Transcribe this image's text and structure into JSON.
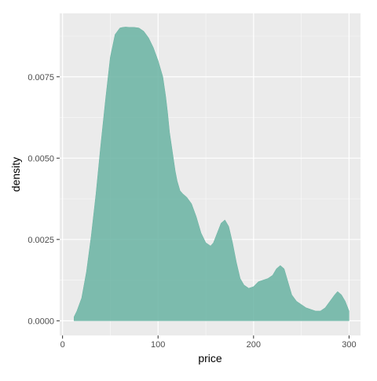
{
  "chart_data": {
    "type": "area",
    "title": "",
    "xlabel": "price",
    "ylabel": "density",
    "xlim": [
      -3,
      312
    ],
    "ylim": [
      -0.00045,
      0.00945
    ],
    "x_ticks": [
      {
        "value": 0,
        "label": "0"
      },
      {
        "value": 100,
        "label": "100"
      },
      {
        "value": 200,
        "label": "200"
      },
      {
        "value": 300,
        "label": "300"
      }
    ],
    "y_ticks": [
      {
        "value": 0.0,
        "label": "0.0000"
      },
      {
        "value": 0.0025,
        "label": "0.0025"
      },
      {
        "value": 0.005,
        "label": "0.0050"
      },
      {
        "value": 0.0075,
        "label": "0.0075"
      }
    ],
    "grid": true,
    "legend": "none",
    "colors": {
      "fill": "#69b3a2",
      "panel": "#ebebeb",
      "grid_major": "#ffffff",
      "axis_text": "#4d4d4d",
      "axis_title": "#000000"
    },
    "series": [
      {
        "x": [
          12,
          15,
          20,
          25,
          30,
          35,
          40,
          45,
          50,
          55,
          60,
          63,
          66,
          70,
          75,
          80,
          85,
          90,
          95,
          100,
          105,
          108,
          110,
          112,
          115,
          118,
          120,
          123,
          126,
          130,
          135,
          140,
          145,
          150,
          155,
          158,
          162,
          166,
          170,
          174,
          178,
          182,
          186,
          190,
          195,
          200,
          205,
          210,
          215,
          220,
          224,
          228,
          232,
          236,
          240,
          245,
          250,
          255,
          260,
          265,
          270,
          275,
          280,
          285,
          288,
          292,
          296,
          300
        ],
        "y": [
          0.00012,
          0.0003,
          0.0007,
          0.0015,
          0.0026,
          0.0039,
          0.0054,
          0.0068,
          0.0081,
          0.0088,
          0.009,
          0.00902,
          0.00903,
          0.00902,
          0.00902,
          0.009,
          0.0089,
          0.0087,
          0.0084,
          0.008,
          0.0075,
          0.0069,
          0.0064,
          0.0058,
          0.0052,
          0.0046,
          0.0043,
          0.004,
          0.0039,
          0.0038,
          0.0036,
          0.0032,
          0.0027,
          0.0024,
          0.0023,
          0.0024,
          0.0027,
          0.003,
          0.0031,
          0.0029,
          0.0024,
          0.0018,
          0.0013,
          0.0011,
          0.001,
          0.00105,
          0.0012,
          0.00125,
          0.0013,
          0.0014,
          0.0016,
          0.0017,
          0.0016,
          0.0012,
          0.0008,
          0.0006,
          0.0005,
          0.0004,
          0.00035,
          0.0003,
          0.0003,
          0.0004,
          0.0006,
          0.0008,
          0.0009,
          0.0008,
          0.0006,
          0.0003
        ]
      }
    ]
  }
}
